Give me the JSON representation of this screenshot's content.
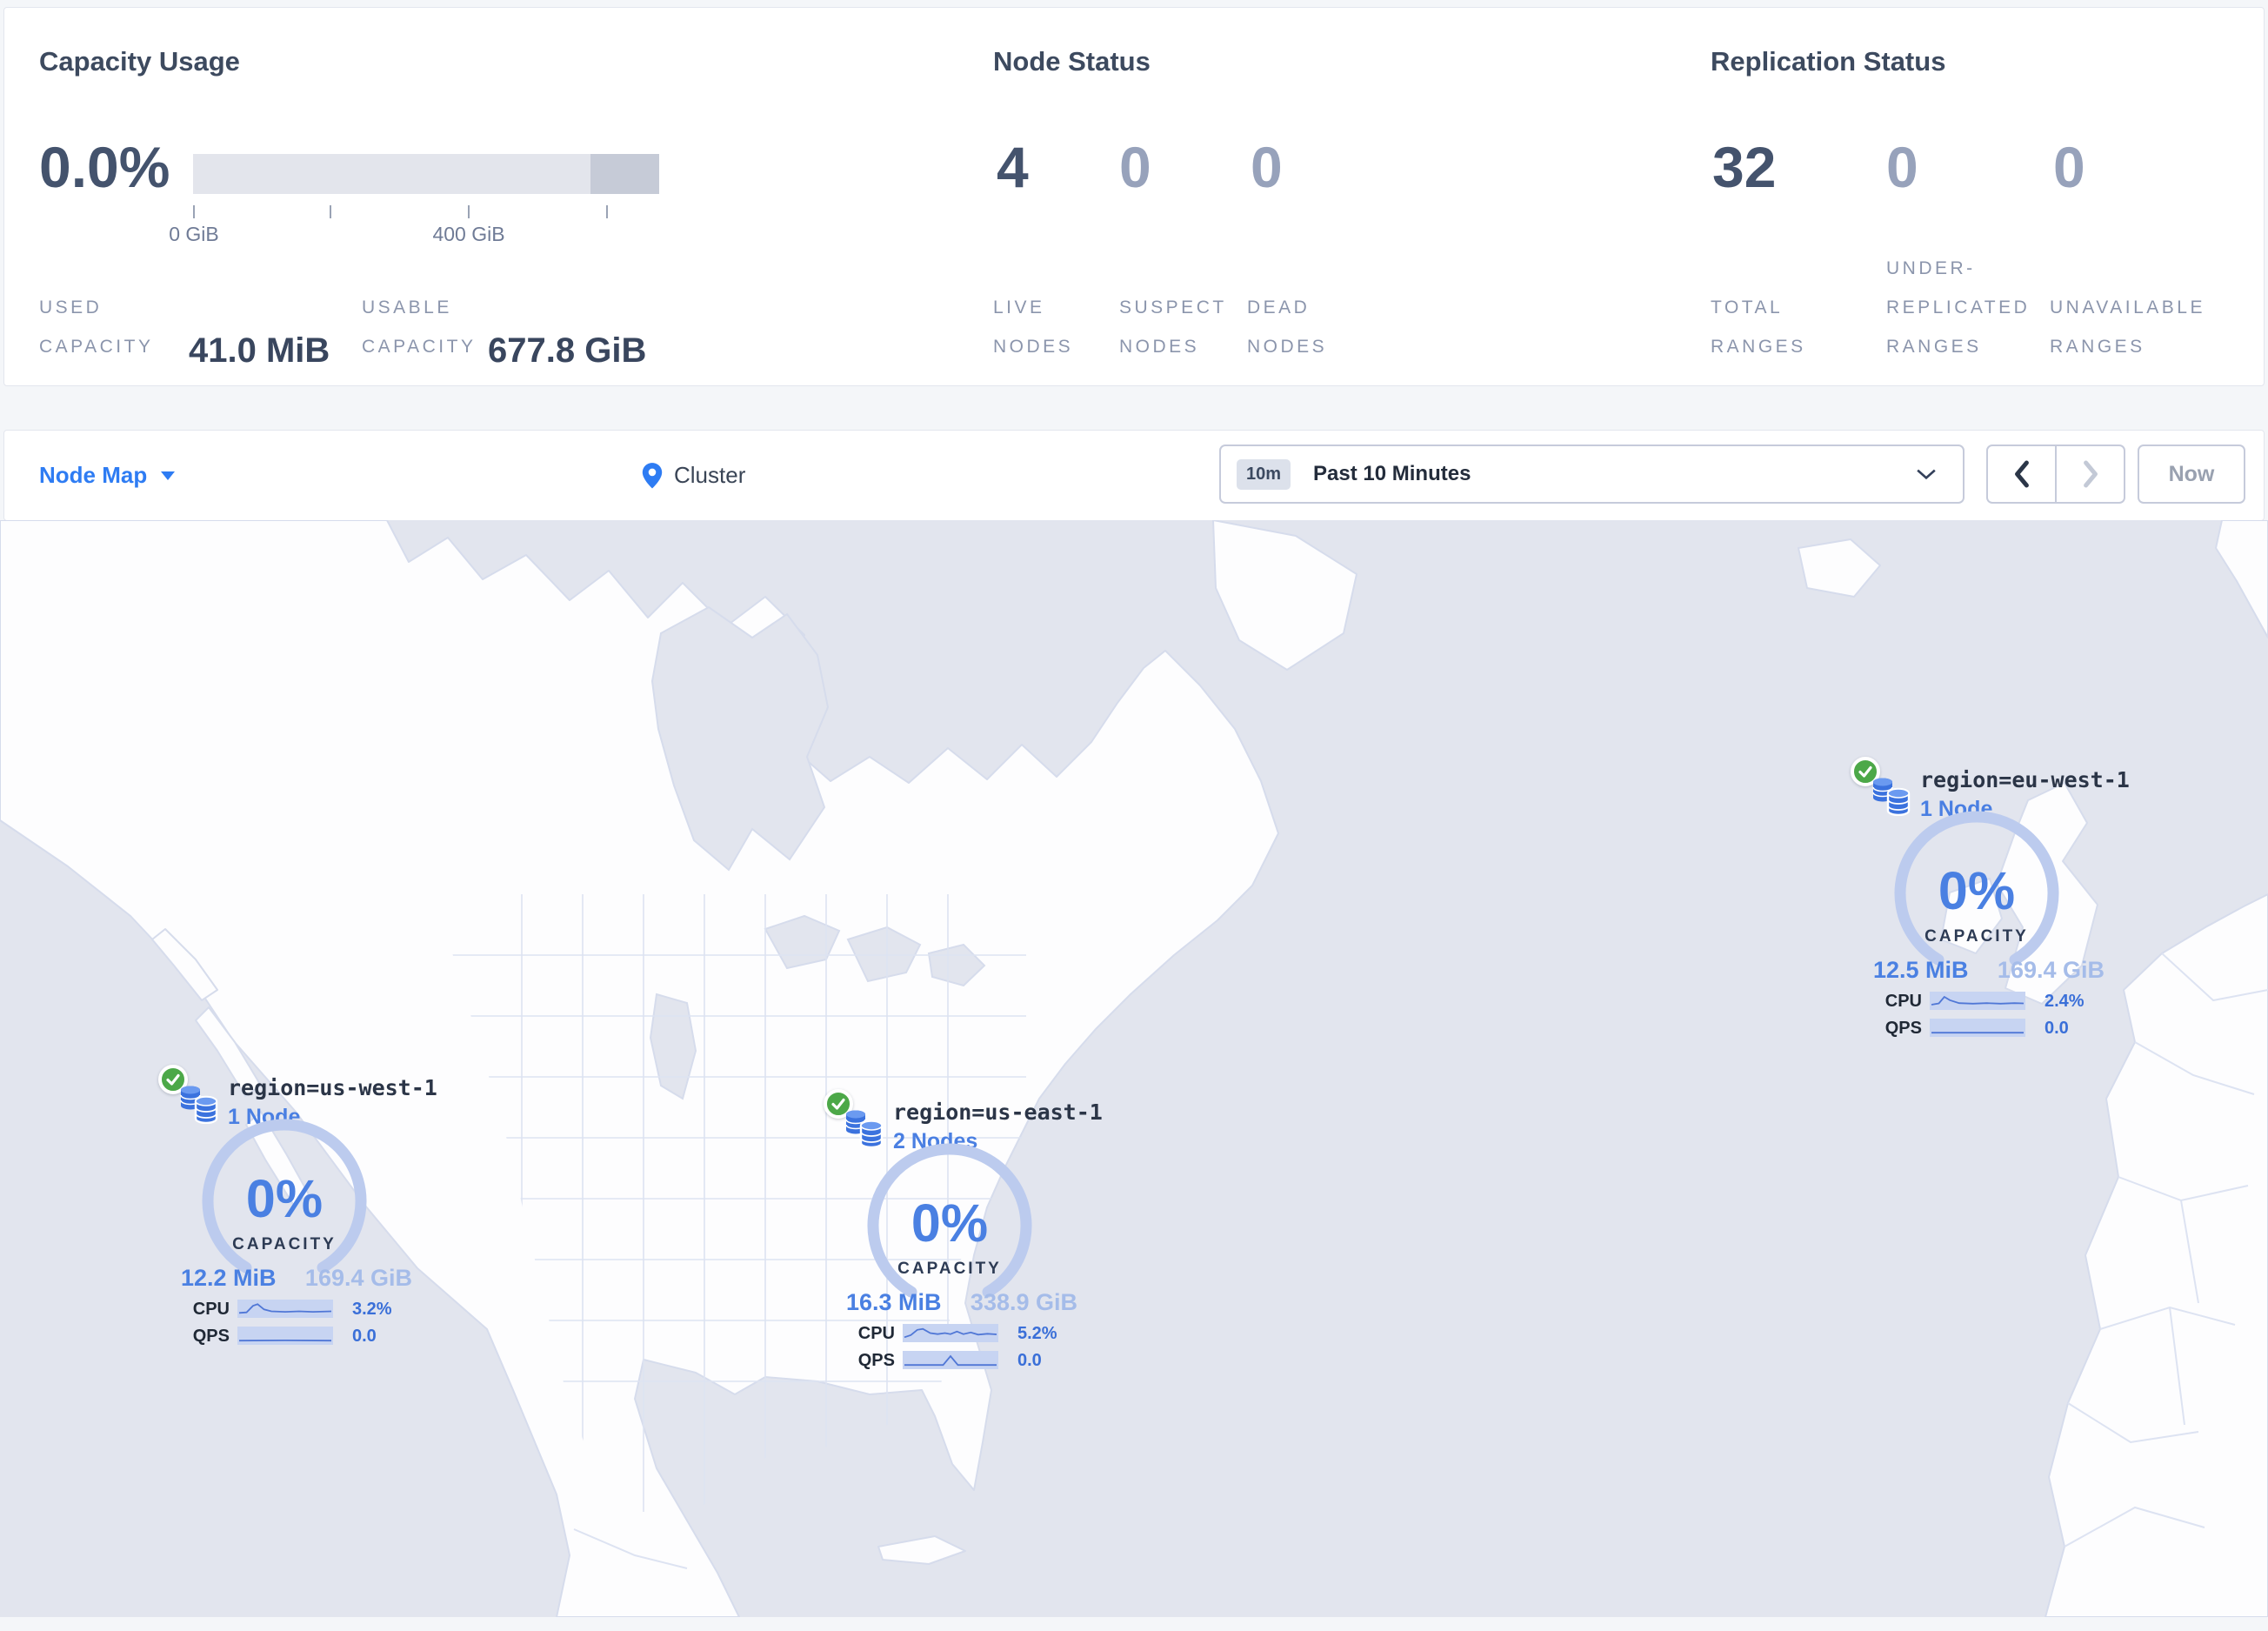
{
  "colors": {
    "accent_blue": "#2e7cf3",
    "marker_blue": "#4a80e2",
    "light_value_blue": "#a5bce9",
    "status_green": "#4ca848",
    "ocean_grey": "#e2e5ee",
    "dark_navy": "#44536d"
  },
  "stats": {
    "capacity": {
      "title": "Capacity Usage",
      "percent": "0.0%",
      "tick_labels": [
        "0 GiB",
        "400 GiB"
      ],
      "metrics": [
        {
          "label_lines": [
            "USED",
            "CAPACITY"
          ],
          "value": "41.0 MiB"
        },
        {
          "label_lines": [
            "USABLE",
            "CAPACITY"
          ],
          "value": "677.8 GiB"
        }
      ]
    },
    "node_status": {
      "title": "Node Status",
      "items": [
        {
          "value": "4",
          "label_lines": [
            "LIVE",
            "NODES"
          ]
        },
        {
          "value": "0",
          "label_lines": [
            "SUSPECT",
            "NODES"
          ]
        },
        {
          "value": "0",
          "label_lines": [
            "DEAD",
            "NODES"
          ]
        }
      ]
    },
    "replication_status": {
      "title": "Replication Status",
      "items": [
        {
          "value": "32",
          "label_lines": [
            "TOTAL",
            "RANGES"
          ]
        },
        {
          "value": "0",
          "label_lines": [
            "UNDER-",
            "REPLICATED",
            "RANGES"
          ]
        },
        {
          "value": "0",
          "label_lines": [
            "UNAVAILABLE",
            "RANGES"
          ]
        }
      ]
    }
  },
  "toolbar": {
    "view_selector": "Node Map",
    "breadcrumb": "Cluster",
    "time_badge": "10m",
    "time_label": "Past 10 Minutes",
    "now_label": "Now"
  },
  "map": {
    "regions": [
      {
        "locality": "region=us-west-1",
        "nodes_label": "1 Node",
        "capacity_percent": "0%",
        "capacity_label": "CAPACITY",
        "used": "12.2 MiB",
        "usable": "169.4 GiB",
        "cpu_label": "CPU",
        "cpu_value": "3.2%",
        "qps_label": "QPS",
        "qps_value": "0.0",
        "cpu_spark": [
          [
            0,
            0.18
          ],
          [
            0.08,
            0.22
          ],
          [
            0.15,
            0.72
          ],
          [
            0.2,
            0.85
          ],
          [
            0.27,
            0.45
          ],
          [
            0.35,
            0.3
          ],
          [
            0.5,
            0.26
          ],
          [
            0.65,
            0.3
          ],
          [
            0.8,
            0.26
          ],
          [
            1,
            0.3
          ]
        ],
        "qps_spark": [
          [
            0,
            0.12
          ],
          [
            0.5,
            0.14
          ],
          [
            1,
            0.12
          ]
        ]
      },
      {
        "locality": "region=us-east-1",
        "nodes_label": "2 Nodes",
        "capacity_percent": "0%",
        "capacity_label": "CAPACITY",
        "used": "16.3 MiB",
        "usable": "338.9 GiB",
        "cpu_label": "CPU",
        "cpu_value": "5.2%",
        "qps_label": "QPS",
        "qps_value": "0.0",
        "cpu_spark": [
          [
            0,
            0.18
          ],
          [
            0.07,
            0.35
          ],
          [
            0.14,
            0.75
          ],
          [
            0.2,
            0.82
          ],
          [
            0.28,
            0.5
          ],
          [
            0.36,
            0.42
          ],
          [
            0.44,
            0.5
          ],
          [
            0.5,
            0.42
          ],
          [
            0.57,
            0.62
          ],
          [
            0.64,
            0.42
          ],
          [
            0.72,
            0.55
          ],
          [
            0.8,
            0.38
          ],
          [
            0.9,
            0.45
          ],
          [
            1,
            0.4
          ]
        ],
        "qps_spark": [
          [
            0,
            0.12
          ],
          [
            0.42,
            0.12
          ],
          [
            0.5,
            0.8
          ],
          [
            0.58,
            0.12
          ],
          [
            1,
            0.12
          ]
        ]
      },
      {
        "locality": "region=eu-west-1",
        "nodes_label": "1 Node",
        "capacity_percent": "0%",
        "capacity_label": "CAPACITY",
        "used": "12.5 MiB",
        "usable": "169.4 GiB",
        "cpu_label": "CPU",
        "cpu_value": "2.4%",
        "qps_label": "QPS",
        "qps_value": "0.0",
        "cpu_spark": [
          [
            0,
            0.2
          ],
          [
            0.08,
            0.3
          ],
          [
            0.14,
            0.8
          ],
          [
            0.2,
            0.55
          ],
          [
            0.3,
            0.32
          ],
          [
            0.45,
            0.28
          ],
          [
            0.6,
            0.32
          ],
          [
            0.75,
            0.28
          ],
          [
            0.9,
            0.32
          ],
          [
            1,
            0.3
          ]
        ],
        "qps_spark": [
          [
            0,
            0.12
          ],
          [
            0.5,
            0.12
          ],
          [
            1,
            0.12
          ]
        ]
      }
    ]
  }
}
